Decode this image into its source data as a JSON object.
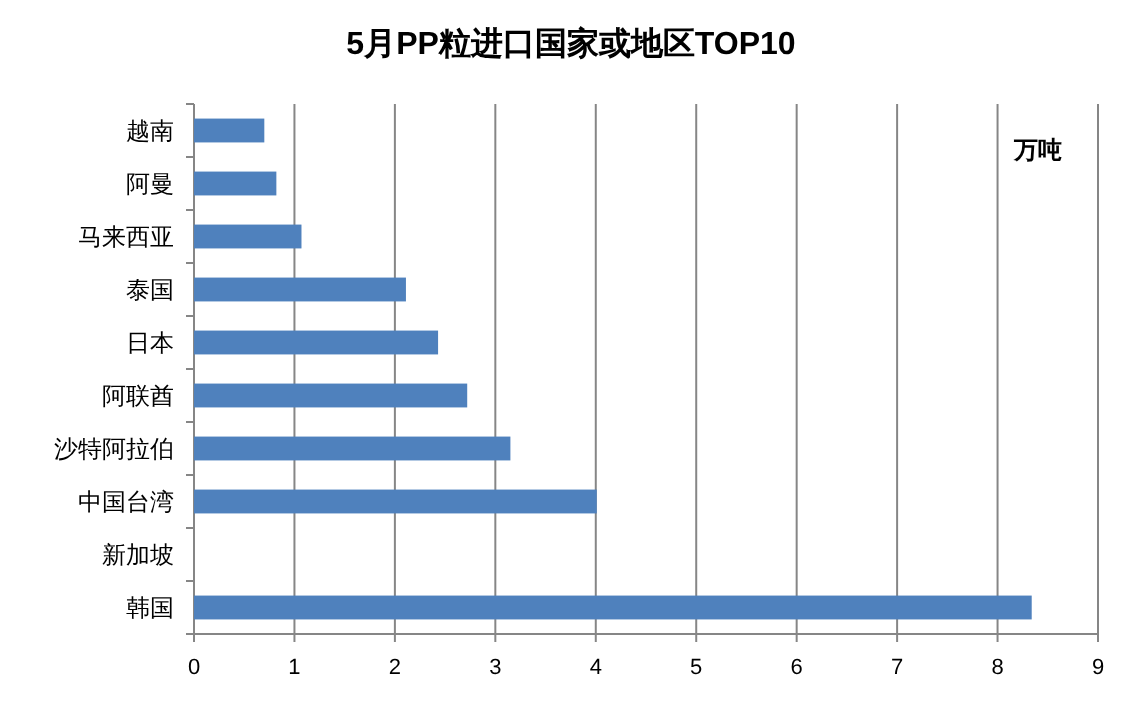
{
  "chart_data": {
    "type": "bar",
    "orientation": "horizontal",
    "title": "5月PP粒进口国家或地区TOP10",
    "categories": [
      "越南",
      "阿曼",
      "马来西亚",
      "泰国",
      "日本",
      "阿联酋",
      "沙特阿拉伯",
      "中国台湾",
      "新加坡",
      "韩国"
    ],
    "values": [
      0.7,
      0.82,
      1.07,
      2.11,
      2.43,
      2.72,
      3.15,
      4.01,
      0,
      8.34
    ],
    "color": "#4f81bd",
    "xlim": [
      0,
      9
    ],
    "xticks": [
      0,
      1,
      2,
      3,
      4,
      5,
      6,
      7,
      8,
      9
    ],
    "grid": "x",
    "annotations": [
      "万吨"
    ]
  }
}
